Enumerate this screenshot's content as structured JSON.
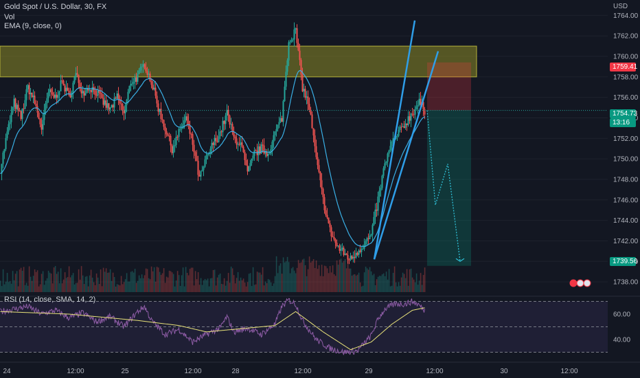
{
  "legend": {
    "symbol": "Gold Spot / U.S. Dollar, 30, FX",
    "vol": "Vol",
    "ema": "EMA (9, close, 0)",
    "rsi": "RSI (14, close, SMA, 14, 2)"
  },
  "currency": "USD",
  "badges": {
    "stop": "1759.41",
    "last": "1754.73",
    "countdown": "13:16",
    "target": "1739.56"
  },
  "colors": {
    "bull": "#26a69a",
    "bear": "#ef5350",
    "ema": "#3ab0e6",
    "zone": "#8c8b26",
    "trendline": "#2f9ee8",
    "rsi": "#8e5ca6",
    "rsi_ma": "#e8e27a"
  },
  "chart_data": [
    {
      "type": "candlestick",
      "title": "Gold Spot / U.S. Dollar, 30, FX",
      "ylim": [
        1737,
        1765.5
      ],
      "y_ticks": [
        1738,
        1740,
        1742,
        1744,
        1746,
        1748,
        1750,
        1752,
        1754,
        1756,
        1758,
        1760,
        1762,
        1764
      ],
      "x_ticks": [
        "24",
        "12:00",
        "25",
        "12:00",
        "28",
        "12:00",
        "29",
        "12:00",
        "30",
        "12:00"
      ],
      "ema": "EMA (9, close, 0)",
      "resistance_zone": [
        1758.0,
        1761.0
      ],
      "short_position": {
        "entry": 1754.73,
        "stop": 1759.41,
        "target": 1739.56
      },
      "forecast_path": [
        1754.73,
        1745.5,
        1749.5,
        1740.0
      ],
      "channel_lines": [
        [
          1740.2,
          1763.5
        ],
        [
          1740.2,
          1760.5
        ]
      ],
      "anchors": [
        [
          0,
          1749.0
        ],
        [
          10,
          1752.5
        ],
        [
          20,
          1755.5
        ],
        [
          30,
          1754.0
        ],
        [
          40,
          1757.0
        ],
        [
          50,
          1755.5
        ],
        [
          60,
          1753.0
        ],
        [
          70,
          1756.5
        ],
        [
          80,
          1756.0
        ],
        [
          90,
          1757.5
        ],
        [
          100,
          1756.0
        ],
        [
          110,
          1758.2
        ],
        [
          120,
          1756.5
        ],
        [
          130,
          1757.0
        ],
        [
          140,
          1756.5
        ],
        [
          150,
          1755.5
        ],
        [
          160,
          1754.8
        ],
        [
          170,
          1756.0
        ],
        [
          180,
          1754.5
        ],
        [
          190,
          1757.5
        ],
        [
          200,
          1758.0
        ],
        [
          210,
          1759.3
        ],
        [
          220,
          1757.5
        ],
        [
          230,
          1755.0
        ],
        [
          240,
          1753.0
        ],
        [
          250,
          1751.0
        ],
        [
          260,
          1752.5
        ],
        [
          270,
          1754.0
        ],
        [
          280,
          1751.5
        ],
        [
          290,
          1748.0
        ],
        [
          300,
          1750.0
        ],
        [
          310,
          1751.5
        ],
        [
          320,
          1752.5
        ],
        [
          330,
          1754.5
        ],
        [
          340,
          1752.0
        ],
        [
          350,
          1751.5
        ],
        [
          360,
          1748.5
        ],
        [
          370,
          1750.5
        ],
        [
          380,
          1751.0
        ],
        [
          390,
          1750.5
        ],
        [
          400,
          1752.5
        ],
        [
          410,
          1754.0
        ],
        [
          420,
          1761.5
        ],
        [
          430,
          1762.5
        ],
        [
          440,
          1757.0
        ],
        [
          450,
          1755.0
        ],
        [
          460,
          1750.0
        ],
        [
          470,
          1746.0
        ],
        [
          480,
          1743.0
        ],
        [
          490,
          1741.5
        ],
        [
          500,
          1740.8
        ],
        [
          510,
          1740.2
        ],
        [
          520,
          1741.0
        ],
        [
          530,
          1741.7
        ],
        [
          540,
          1742.5
        ],
        [
          550,
          1746.0
        ],
        [
          560,
          1749.5
        ],
        [
          570,
          1751.5
        ],
        [
          580,
          1752.5
        ],
        [
          590,
          1753.5
        ],
        [
          600,
          1754.5
        ],
        [
          610,
          1755.5
        ],
        [
          618,
          1754.73
        ]
      ]
    },
    {
      "type": "line",
      "title": "RSI (14, close, SMA, 14, 2)",
      "ylim": [
        27,
        73
      ],
      "y_ticks": [
        40.0,
        60.0
      ],
      "bands": [
        30,
        50,
        70
      ],
      "anchors": [
        [
          0,
          62
        ],
        [
          20,
          64
        ],
        [
          40,
          66
        ],
        [
          60,
          60
        ],
        [
          80,
          63
        ],
        [
          100,
          57
        ],
        [
          120,
          61
        ],
        [
          140,
          54
        ],
        [
          160,
          58
        ],
        [
          180,
          50
        ],
        [
          200,
          62
        ],
        [
          210,
          66
        ],
        [
          220,
          55
        ],
        [
          240,
          44
        ],
        [
          260,
          48
        ],
        [
          280,
          38
        ],
        [
          300,
          44
        ],
        [
          320,
          49
        ],
        [
          330,
          58
        ],
        [
          340,
          46
        ],
        [
          360,
          49
        ],
        [
          380,
          44
        ],
        [
          400,
          52
        ],
        [
          410,
          66
        ],
        [
          420,
          71
        ],
        [
          430,
          68
        ],
        [
          440,
          55
        ],
        [
          460,
          40
        ],
        [
          480,
          33
        ],
        [
          500,
          30
        ],
        [
          520,
          31
        ],
        [
          540,
          43
        ],
        [
          550,
          56
        ],
        [
          560,
          64
        ],
        [
          575,
          68
        ],
        [
          590,
          68
        ],
        [
          600,
          70
        ],
        [
          610,
          67
        ],
        [
          618,
          63
        ]
      ],
      "ma_anchors": [
        [
          0,
          62
        ],
        [
          100,
          60
        ],
        [
          200,
          55
        ],
        [
          260,
          51
        ],
        [
          300,
          46
        ],
        [
          360,
          49
        ],
        [
          400,
          51
        ],
        [
          430,
          62
        ],
        [
          470,
          46
        ],
        [
          510,
          32
        ],
        [
          540,
          38
        ],
        [
          570,
          52
        ],
        [
          600,
          63
        ],
        [
          618,
          65
        ]
      ]
    }
  ]
}
